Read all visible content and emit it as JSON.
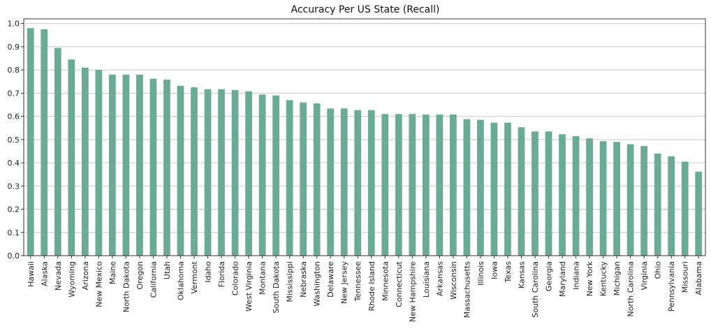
{
  "chart_data": {
    "type": "bar",
    "title": "Accuracy Per US State (Recall)",
    "xlabel": "",
    "ylabel": "",
    "ylim": [
      0,
      1.02
    ],
    "yticks": [
      "0.0",
      "0.1",
      "0.2",
      "0.3",
      "0.4",
      "0.5",
      "0.6",
      "0.7",
      "0.8",
      "0.9",
      "1.0"
    ],
    "grid": "horizontal",
    "bar_color": "#6aaa96",
    "categories": [
      "Hawaii",
      "Alaska",
      "Nevada",
      "Wyoming",
      "Arizona",
      "New Mexico",
      "Maine",
      "North Dakota",
      "Oregon",
      "California",
      "Utah",
      "Oklahoma",
      "Vermont",
      "Idaho",
      "Florida",
      "Colorado",
      "West Virginia",
      "Montana",
      "South Dakota",
      "Mississippi",
      "Nebraska",
      "Washington",
      "Delaware",
      "New Jersey",
      "Tennessee",
      "Rhode Island",
      "Minnesota",
      "Connecticut",
      "New Hampshire",
      "Louisiana",
      "Arkansas",
      "Wisconsin",
      "Massachusetts",
      "Illinois",
      "Iowa",
      "Texas",
      "Kansas",
      "South Carolina",
      "Georgia",
      "Maryland",
      "Indiana",
      "New York",
      "Kentucky",
      "Michigan",
      "North Carolina",
      "Virginia",
      "Ohio",
      "Pennsylvania",
      "Missouri",
      "Alabama"
    ],
    "values": [
      0.98,
      0.975,
      0.895,
      0.845,
      0.81,
      0.8,
      0.78,
      0.78,
      0.78,
      0.762,
      0.758,
      0.732,
      0.725,
      0.717,
      0.717,
      0.713,
      0.708,
      0.694,
      0.69,
      0.67,
      0.66,
      0.656,
      0.634,
      0.634,
      0.627,
      0.627,
      0.61,
      0.61,
      0.61,
      0.608,
      0.608,
      0.608,
      0.588,
      0.585,
      0.573,
      0.573,
      0.553,
      0.535,
      0.535,
      0.523,
      0.515,
      0.505,
      0.493,
      0.49,
      0.48,
      0.472,
      0.44,
      0.428,
      0.405,
      0.362
    ]
  }
}
